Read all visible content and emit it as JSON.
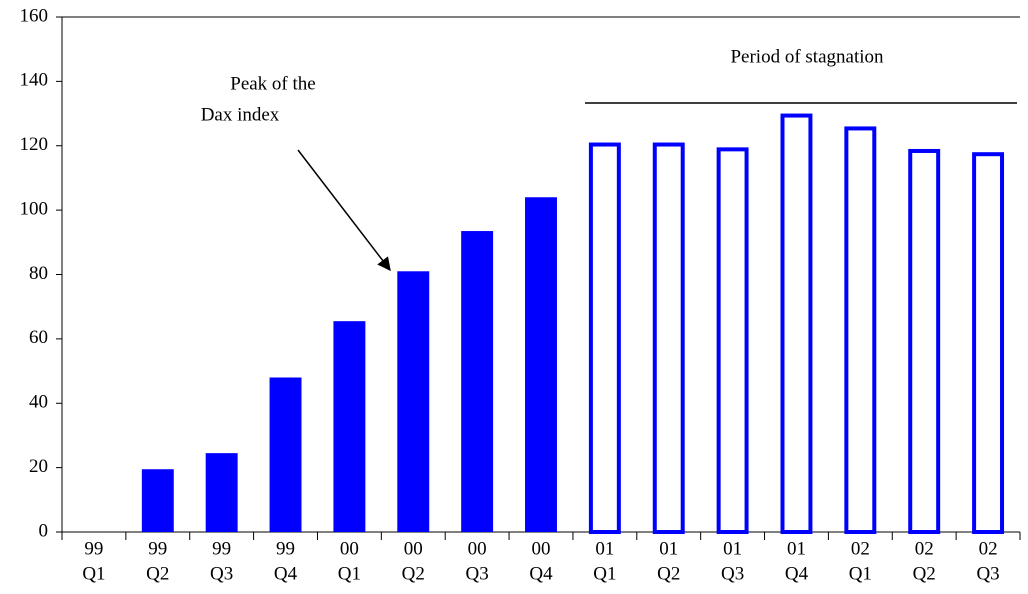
{
  "chart_data": {
    "type": "bar",
    "categories": [
      [
        "99",
        "Q1"
      ],
      [
        "99",
        "Q2"
      ],
      [
        "99",
        "Q3"
      ],
      [
        "99",
        "Q4"
      ],
      [
        "00",
        "Q1"
      ],
      [
        "00",
        "Q2"
      ],
      [
        "00",
        "Q3"
      ],
      [
        "00",
        "Q4"
      ],
      [
        "01",
        "Q1"
      ],
      [
        "01",
        "Q2"
      ],
      [
        "01",
        "Q3"
      ],
      [
        "01",
        "Q4"
      ],
      [
        "02",
        "Q1"
      ],
      [
        "02",
        "Q2"
      ],
      [
        "02",
        "Q3"
      ]
    ],
    "values": [
      0,
      19.5,
      24.5,
      48,
      65.5,
      81,
      93.5,
      104,
      121,
      121,
      119.5,
      130,
      126,
      119,
      118
    ],
    "bar_styles": [
      "filled",
      "filled",
      "filled",
      "filled",
      "filled",
      "filled",
      "filled",
      "filled",
      "outline",
      "outline",
      "outline",
      "outline",
      "outline",
      "outline",
      "outline"
    ],
    "color": "#0000ff",
    "ylim": [
      0,
      160
    ],
    "yticks": [
      0,
      20,
      40,
      60,
      80,
      100,
      120,
      140,
      160
    ],
    "annotations": [
      {
        "text": [
          "Peak  of  the",
          "Dax index"
        ]
      },
      {
        "text": "Period of stagnation"
      }
    ]
  }
}
